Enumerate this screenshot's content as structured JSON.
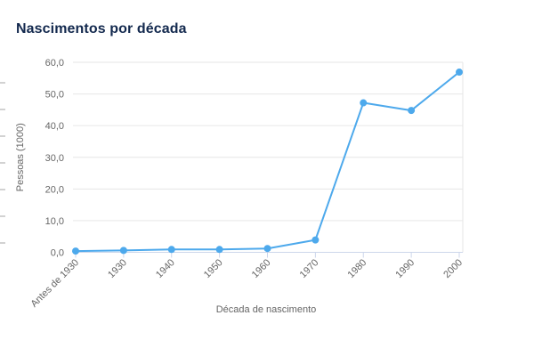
{
  "chart_data": {
    "type": "line",
    "title": "Nascimentos por década",
    "categories": [
      "Antes de 1930",
      "1930",
      "1940",
      "1950",
      "1960",
      "1970",
      "1980",
      "1990",
      "2000"
    ],
    "values": [
      0.4,
      0.6,
      0.9,
      0.9,
      1.2,
      3.9,
      47.2,
      44.8,
      56.9
    ],
    "series_name": "Nascimentos",
    "xlabel": "Década de nascimento",
    "ylabel": "Pessoas (1000)",
    "ylim": [
      0,
      60
    ],
    "ytick_step": 10,
    "ytick_labels": [
      "0,0",
      "10,0",
      "20,0",
      "30,0",
      "40,0",
      "50,0",
      "60,0"
    ],
    "grid": true,
    "legend": false,
    "colors": {
      "title": "#13294e",
      "series": "#4da9ec",
      "grid": "#e6e6e6",
      "axis_line": "#ccd6eb",
      "axis_text": "#666666"
    }
  }
}
